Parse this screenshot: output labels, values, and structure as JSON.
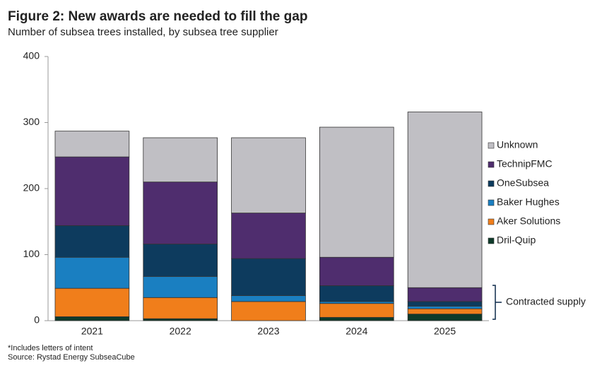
{
  "chart_data": {
    "type": "stacked_bar",
    "title": "Figure 2: New awards are needed to fill the gap",
    "subtitle": "Number of subsea trees installed, by subsea tree supplier",
    "categories": [
      "2021",
      "2022",
      "2023",
      "2024",
      "2025"
    ],
    "series": [
      {
        "name": "Dril-Quip",
        "color": "#0e3a2a",
        "values": [
          6,
          3,
          0,
          5,
          10
        ]
      },
      {
        "name": "Aker Solutions",
        "color": "#f07e1b",
        "values": [
          43,
          32,
          29,
          21,
          8
        ]
      },
      {
        "name": "Baker Hughes",
        "color": "#1a7fc1",
        "values": [
          47,
          32,
          9,
          3,
          4
        ]
      },
      {
        "name": "OneSubsea",
        "color": "#0d3b5e",
        "values": [
          48,
          49,
          56,
          24,
          7
        ]
      },
      {
        "name": "TechnipFMC",
        "color": "#4f2d6e",
        "values": [
          104,
          94,
          69,
          43,
          21
        ]
      },
      {
        "name": "Unknown",
        "color": "#c0bfc4",
        "values": [
          39,
          67,
          114,
          197,
          266
        ]
      }
    ],
    "ylim": [
      0,
      400
    ],
    "yticks": [
      0,
      100,
      200,
      300,
      400
    ],
    "grid": false,
    "legend": "right",
    "annotation": "Contracted supply",
    "note": "*Includes letters of intent",
    "source": "Source: Rystad Energy SubseaCube"
  }
}
